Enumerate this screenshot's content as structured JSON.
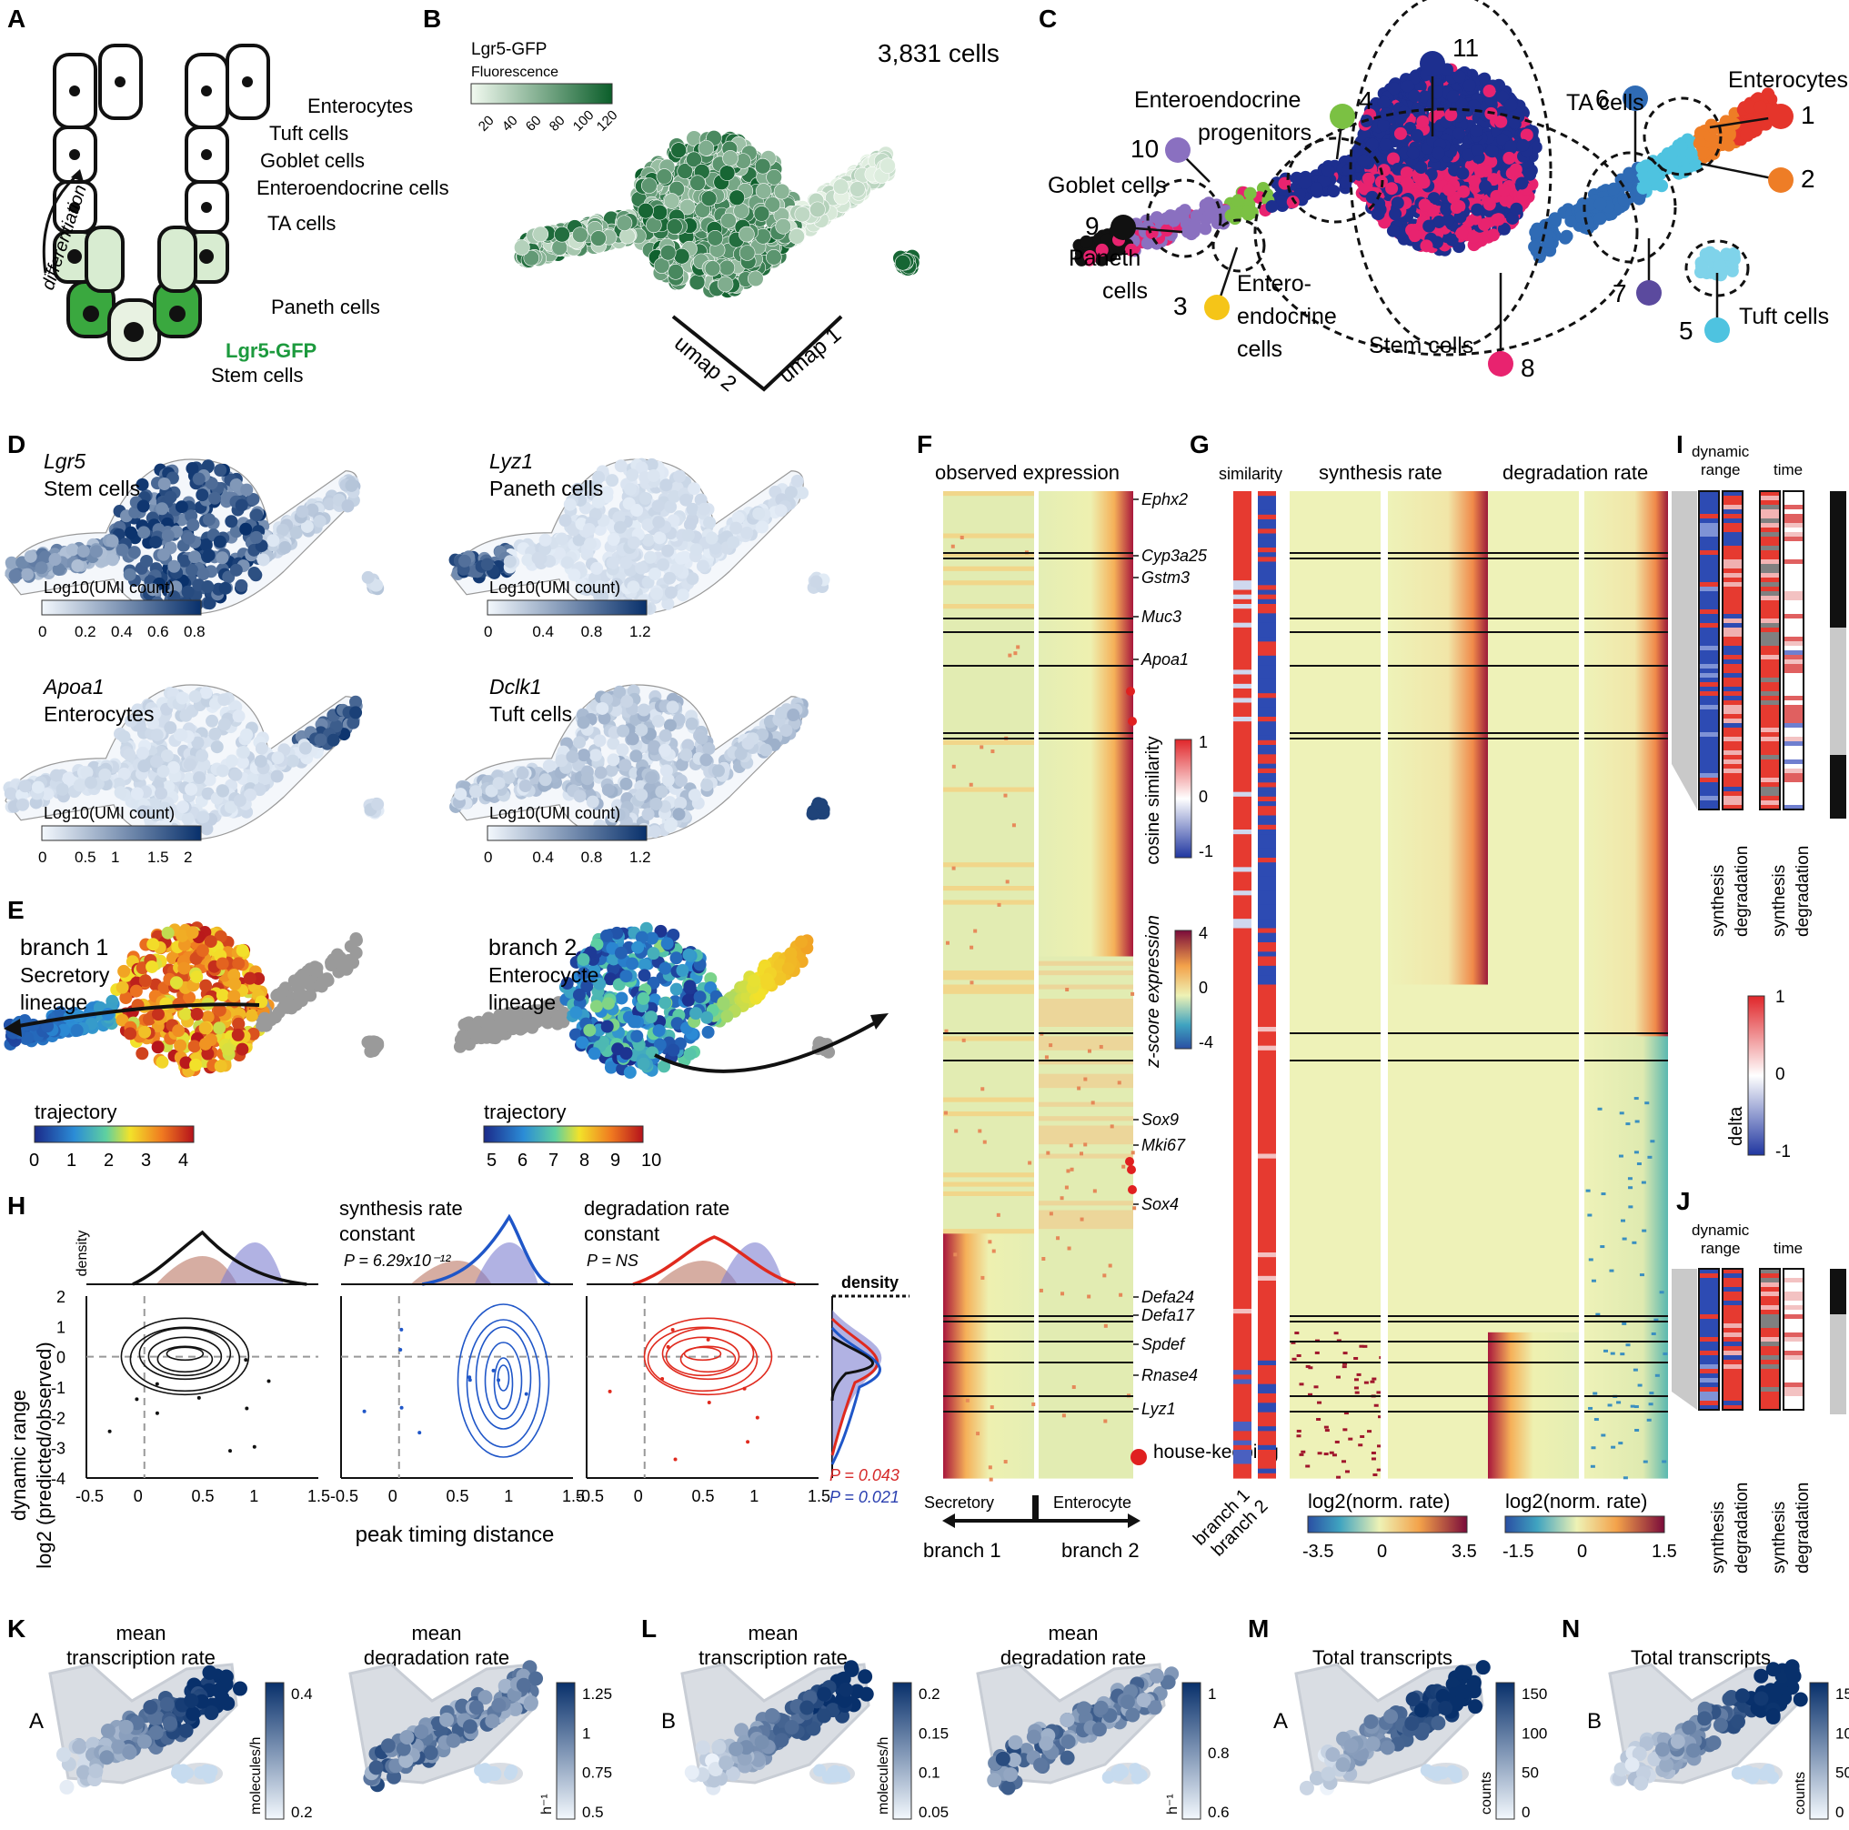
{
  "colors": {
    "green_dark": "#0b5e2a",
    "green_light": "#e9f5e7",
    "lgr5_label": "#1d9a3e",
    "blue_dark": "#08306b",
    "blue_light": "#eef4fb",
    "red": "#e53935",
    "cluster_blue": "#1d2f8f",
    "cluster_pink": "#e8236f"
  },
  "panelA": {
    "letter": "A",
    "labels": [
      "Enterocytes",
      "Tuft cells",
      "Goblet cells",
      "Enteroendocrine cells",
      "TA cells",
      "Paneth cells"
    ],
    "lgr5": "Lgr5-GFP",
    "stem": "Stem cells",
    "arrow": "differentiation"
  },
  "panelB": {
    "letter": "B",
    "count": "3,831 cells",
    "legend_title": "Lgr5-GFP",
    "legend_sub": "Fluorescence",
    "ticks": [
      "20",
      "40",
      "60",
      "80",
      "100",
      "120"
    ],
    "umap1": "umap 1",
    "umap2": "umap 2"
  },
  "panelC": {
    "letter": "C",
    "clusters": [
      {
        "id": "1",
        "color": "#e5352b"
      },
      {
        "id": "2",
        "color": "#ee7d26"
      },
      {
        "id": "3",
        "color": "#f5c518"
      },
      {
        "id": "4",
        "color": "#7bc143"
      },
      {
        "id": "5",
        "color": "#4ec3e0"
      },
      {
        "id": "6",
        "color": "#2f6bb5"
      },
      {
        "id": "7",
        "color": "#5b4a9e"
      },
      {
        "id": "8",
        "color": "#e8236f"
      },
      {
        "id": "9",
        "color": "#111111"
      },
      {
        "id": "10",
        "color": "#8a70c0"
      },
      {
        "id": "11",
        "color": "#1d2f8f"
      }
    ],
    "labels": {
      "entero": "Enterocytes",
      "ta": "TA cells",
      "eep1": "Enteroendocrine",
      "eep2": "progenitors",
      "goblet": "Goblet cells",
      "paneth1": "Paneth",
      "paneth2": "cells",
      "ee1": "Entero-",
      "ee2": "endocrine",
      "ee3": "cells",
      "stem": "Stem cells",
      "tuft": "Tuft cells"
    }
  },
  "panelD": {
    "letter": "D",
    "maps": [
      {
        "gene": "Lgr5",
        "cell": "Stem cells",
        "legend": "Log10(UMI count)",
        "ticks": [
          "0",
          "0.2",
          "0.4",
          "0.6",
          "0.8"
        ]
      },
      {
        "gene": "Lyz1",
        "cell": "Paneth cells",
        "legend": "Log10(UMI count)",
        "ticks": [
          "0",
          "0.4",
          "0.8",
          "1.2"
        ]
      },
      {
        "gene": "Apoa1",
        "cell": "Enterocytes",
        "legend": "Log10(UMI count)",
        "ticks": [
          "0",
          "0.5",
          "1",
          "1.5",
          "2"
        ]
      },
      {
        "gene": "Dclk1",
        "cell": "Tuft cells",
        "legend": "Log10(UMI count)",
        "ticks": [
          "0",
          "0.4",
          "0.8",
          "1.2"
        ]
      }
    ]
  },
  "panelE": {
    "letter": "E",
    "b1": {
      "title": "branch 1",
      "l1": "Secretory",
      "l2": "lineage",
      "legend": "trajectory",
      "ticks": [
        "0",
        "1",
        "2",
        "3",
        "4"
      ]
    },
    "b2": {
      "title": "branch 2",
      "l1": "Enterocycte",
      "l2": "lineage",
      "legend": "trajectory",
      "ticks": [
        "5",
        "6",
        "7",
        "8",
        "9",
        "10"
      ]
    }
  },
  "panelH": {
    "letter": "H",
    "ylabel1": "dynamic range",
    "ylabel2": "log2 (predicted/observed)",
    "xlabel": "peak timing distance",
    "density": "density",
    "syn_t1": "synthesis rate",
    "syn_t2": "constant",
    "syn_p": "P = 6.29x10⁻¹²",
    "deg_t1": "degradation rate",
    "deg_t2": "constant",
    "deg_p": "P = NS",
    "p_red": "P = 0.043",
    "p_blue": "P = 0.021",
    "xticks": [
      "-0.5",
      "0",
      "0.5",
      "1",
      "1.5"
    ],
    "yticks": [
      "2",
      "1",
      "0",
      "-1",
      "-2",
      "-3",
      "-4"
    ]
  },
  "panelF": {
    "letter": "F",
    "title": "observed expression",
    "genes": [
      "Ephx2",
      "Cyp3a25",
      "Gstm3",
      "Muc3",
      "Apoa1",
      "Sox9",
      "Mki67",
      "Sox4",
      "Defa24",
      "Defa17",
      "Spdef",
      "Rnase4",
      "Lyz1"
    ],
    "housekeeping": "house-keeping",
    "sec": "Secretory",
    "ent": "Enterocyte",
    "br1": "branch 1",
    "br2": "branch 2",
    "cos_label": "cosine similarity",
    "cos_ticks": [
      "1",
      "0",
      "-1"
    ],
    "z_label": "z-score expression",
    "z_ticks": [
      "4",
      "0",
      "-4"
    ]
  },
  "panelG": {
    "letter": "G",
    "similarity": "similarity",
    "syn": "synthesis rate",
    "deg": "degradation rate",
    "br1": "branch 1",
    "br2": "branch 2",
    "legend": "log2(norm. rate)",
    "syn_ticks": [
      "-3.5",
      "0",
      "3.5"
    ],
    "deg_ticks": [
      "-1.5",
      "0",
      "1.5"
    ]
  },
  "panelI": {
    "letter": "I",
    "dr1": "dynamic",
    "dr2": "range",
    "time": "time",
    "syn": "synthesis",
    "deg": "degradation",
    "delta": "delta",
    "delta_ticks": [
      "1",
      "0",
      "-1"
    ]
  },
  "panelJ": {
    "letter": "J",
    "dr1": "dynamic",
    "dr2": "range",
    "time": "time",
    "syn": "synthesis",
    "deg": "degradation"
  },
  "panelK": {
    "letter": "K",
    "t1a": "mean",
    "t1b": "transcription rate",
    "t2a": "mean",
    "t2b": "degradation rate",
    "rep": "A",
    "u1": "molecules/h",
    "u2": "h⁻¹",
    "ticks1": [
      "0.4",
      "0.2"
    ],
    "ticks2": [
      "1.25",
      "1",
      "0.75",
      "0.5"
    ]
  },
  "panelL": {
    "letter": "L",
    "t1a": "mean",
    "t1b": "transcription rate",
    "t2a": "mean",
    "t2b": "degradation rate",
    "rep": "B",
    "u1": "molecules/h",
    "u2": "h⁻¹",
    "ticks1": [
      "0.2",
      "0.15",
      "0.1",
      "0.05"
    ],
    "ticks2": [
      "1",
      "0.8",
      "0.6"
    ]
  },
  "panelM": {
    "letter": "M",
    "title": "Total transcripts",
    "rep": "A",
    "unit": "counts",
    "ticks": [
      "150",
      "100",
      "50",
      "0"
    ]
  },
  "panelN": {
    "letter": "N",
    "title": "Total transcripts",
    "rep": "B",
    "unit": "counts",
    "ticks": [
      "15",
      "10",
      "50",
      "0"
    ]
  }
}
